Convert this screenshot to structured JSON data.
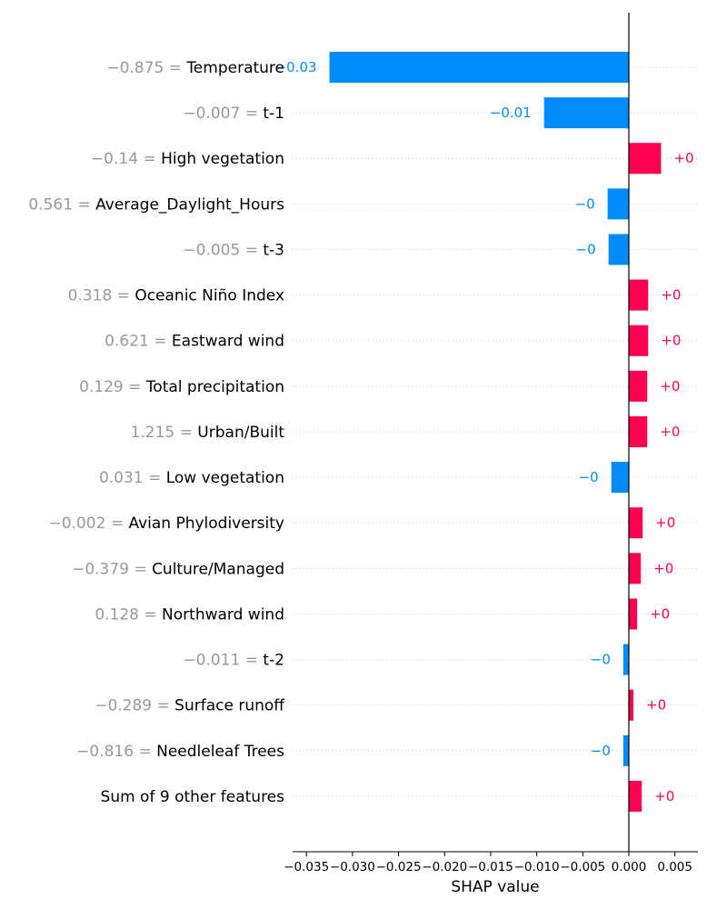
{
  "chart_data": {
    "type": "bar",
    "orientation": "horizontal",
    "xlabel": "SHAP value",
    "xlim": [
      -0.0365,
      0.0075
    ],
    "xticks": [
      -0.035,
      -0.03,
      -0.025,
      -0.02,
      -0.015,
      -0.01,
      -0.005,
      0.0,
      0.005
    ],
    "xtick_labels": [
      "−0.035",
      "−0.030",
      "−0.025",
      "−0.020",
      "−0.015",
      "−0.010",
      "−0.005",
      "0.000",
      "0.005"
    ],
    "grid": "horizontal dotted",
    "colors": {
      "positive": "#ff0051",
      "negative": "#008bfb",
      "value_label": "#999999",
      "feature_label": "#000000",
      "axis": "#000000"
    },
    "features": [
      {
        "value": "−0.875 = ",
        "name": "Temperature",
        "shap": -0.0325,
        "label": "−0.03"
      },
      {
        "value": "−0.007 = ",
        "name": "t-1",
        "shap": -0.0092,
        "label": "−0.01"
      },
      {
        "value": "−0.14 = ",
        "name": "High vegetation",
        "shap": 0.0035,
        "label": "+0"
      },
      {
        "value": "0.561 = ",
        "name": "Average_Daylight_Hours",
        "shap": -0.0023,
        "label": "−0"
      },
      {
        "value": "−0.005 = ",
        "name": "t-3",
        "shap": -0.0022,
        "label": "−0"
      },
      {
        "value": "0.318 = ",
        "name": "Oceanic Niño Index",
        "shap": 0.0021,
        "label": "+0"
      },
      {
        "value": "0.621 = ",
        "name": "Eastward wind",
        "shap": 0.0021,
        "label": "+0"
      },
      {
        "value": "0.129 = ",
        "name": "Total precipitation",
        "shap": 0.002,
        "label": "+0"
      },
      {
        "value": "1.215 = ",
        "name": "Urban/Built",
        "shap": 0.002,
        "label": "+0"
      },
      {
        "value": "0.031 = ",
        "name": "Low vegetation",
        "shap": -0.0019,
        "label": "−0"
      },
      {
        "value": "−0.002 = ",
        "name": "Avian Phylodiversity",
        "shap": 0.0015,
        "label": "+0"
      },
      {
        "value": "−0.379 = ",
        "name": "Culture/Managed",
        "shap": 0.0013,
        "label": "+0"
      },
      {
        "value": "0.128 = ",
        "name": "Northward wind",
        "shap": 0.0009,
        "label": "+0"
      },
      {
        "value": "−0.011 = ",
        "name": "t-2",
        "shap": -0.0006,
        "label": "−0"
      },
      {
        "value": "−0.289 = ",
        "name": "Surface runoff",
        "shap": 0.0005,
        "label": "+0"
      },
      {
        "value": "−0.816 = ",
        "name": "Needleleaf Trees",
        "shap": -0.0006,
        "label": "−0"
      },
      {
        "value": "",
        "name": "Sum of 9 other features",
        "shap": 0.0014,
        "label": "+0"
      }
    ]
  }
}
